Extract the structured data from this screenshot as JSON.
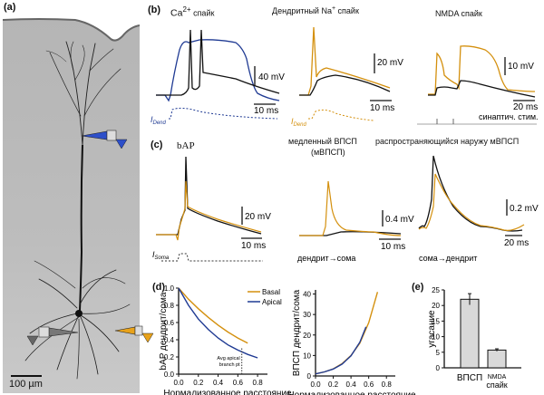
{
  "colors": {
    "apical_blue": "#1f3a93",
    "basal_orange": "#d4900e",
    "black_trace": "#111111",
    "bar_fill": "#d9d9d9",
    "tissue_gray": "#b8b8b8"
  },
  "panel_a": {
    "label": "(a)",
    "scale_bar": "100 µm",
    "icons": [
      "apical-pipette-blue",
      "soma-pipette-gray",
      "basal-pipette-orange"
    ]
  },
  "panel_b": {
    "label": "(b)",
    "ca_title_base": "Ca",
    "ca_title_sup": "2+",
    "ca_title_suffix": " спайк",
    "na_title_base": "Дендритный Na",
    "na_title_sup": "+",
    "na_title_suffix": " спайк",
    "nmda_title": "NMDA спайк",
    "ca_scale_v": "40 mV",
    "ca_scale_t": "10 ms",
    "na_scale_v": "20 mV",
    "na_scale_t": "10 ms",
    "nmda_scale_v": "10 mV",
    "nmda_scale_t": "20 ms",
    "i_dend_base": "I",
    "i_dend_sub": "Dend",
    "syn_stim": "синаптич. стим."
  },
  "panel_c": {
    "label": "(c)",
    "bap_title": "bAP",
    "slow_epsp_title_1": "медленный ВПСП",
    "slow_epsp_title_2": "(мВПСП)",
    "outward_title": "распространяющийся наружу мВПСП",
    "bap_scale_v": "20 mV",
    "bap_scale_t": "10 ms",
    "slow_scale_v": "0.4 mV",
    "slow_scale_t": "10 ms",
    "out_scale_v": "0.2 mV",
    "out_scale_t": "20 ms",
    "i_soma_base": "I",
    "i_soma_sub": "Soma",
    "dir_dend_soma": "дендрит→сома",
    "dir_soma_dend": "сома→дендрит"
  },
  "panel_d": {
    "label": "(d)"
  },
  "panel_e": {
    "label": "(e)"
  },
  "chart_data": [
    {
      "type": "line",
      "title": "",
      "xlabel": "Нормализованное расстояние",
      "ylabel": "bAP дендрит/сома",
      "xlim": [
        0,
        0.9
      ],
      "ylim": [
        0,
        1.0
      ],
      "xticks": [
        "0.0",
        "0.2",
        "0.4",
        "0.6",
        "0.8"
      ],
      "yticks": [
        "0.0",
        "0.2",
        "0.4",
        "0.6",
        "0.8",
        "1.0"
      ],
      "legend": "top-right",
      "annotation": {
        "text_1": "Avg apical",
        "text_2": "branch pt",
        "x": 0.64
      },
      "series": [
        {
          "name": "Basal",
          "color": "#d4900e",
          "x": [
            0,
            0.1,
            0.2,
            0.3,
            0.4,
            0.5,
            0.6,
            0.7
          ],
          "y": [
            1.0,
            0.87,
            0.76,
            0.66,
            0.57,
            0.49,
            0.42,
            0.36
          ]
        },
        {
          "name": "Apical",
          "color": "#1f3a93",
          "x": [
            0,
            0.1,
            0.2,
            0.3,
            0.4,
            0.5,
            0.6,
            0.7,
            0.8
          ],
          "y": [
            1.0,
            0.8,
            0.64,
            0.52,
            0.42,
            0.34,
            0.28,
            0.23,
            0.19
          ]
        }
      ]
    },
    {
      "type": "line",
      "title": "",
      "xlabel": "Нормализованное расстояние",
      "ylabel": "ВПСП дендрит/сома",
      "xlim": [
        0,
        0.9
      ],
      "ylim": [
        0,
        42
      ],
      "xticks": [
        "0.0",
        "0.2",
        "0.4",
        "0.6",
        "0.8"
      ],
      "yticks": [
        "0",
        "10",
        "20",
        "30",
        "40"
      ],
      "series": [
        {
          "name": "Basal",
          "color": "#d4900e",
          "x": [
            0,
            0.1,
            0.2,
            0.3,
            0.4,
            0.5,
            0.6,
            0.7
          ],
          "y": [
            1,
            2,
            3.5,
            6,
            10,
            16,
            26,
            41
          ]
        },
        {
          "name": "Apical",
          "color": "#1f3a93",
          "x": [
            0,
            0.1,
            0.2,
            0.3,
            0.4,
            0.5,
            0.57
          ],
          "y": [
            1,
            2,
            3.4,
            5.8,
            9.8,
            16.5,
            24
          ]
        }
      ]
    },
    {
      "type": "bar",
      "title": "",
      "xlabel": "",
      "ylabel": "угасание",
      "ylim": [
        0,
        25
      ],
      "yticks": [
        "0",
        "5",
        "10",
        "15",
        "20",
        "25"
      ],
      "categories": [
        "ВПСП",
        "NMDA спайк"
      ],
      "values": [
        22,
        5.7
      ],
      "errors": [
        1.8,
        0.4
      ]
    }
  ]
}
